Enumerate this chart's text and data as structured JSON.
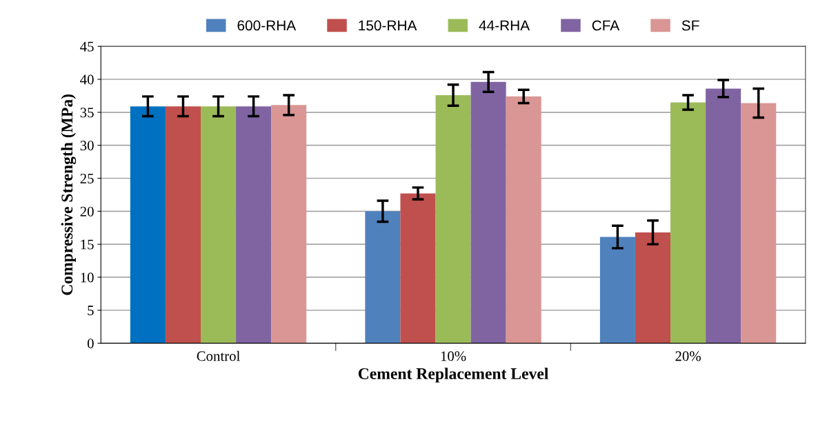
{
  "chart_data": {
    "type": "bar",
    "xlabel": "Cement Replacement Level",
    "ylabel": "Compressive Strength (MPa)",
    "categories": [
      "Control",
      "10%",
      "20%"
    ],
    "series": [
      {
        "name": "600-RHA",
        "color": "#4f81bd",
        "colors": [
          "#0070c0",
          "#4f81bd",
          "#4f81bd"
        ],
        "values": [
          35.9,
          20.0,
          16.1
        ],
        "errors": [
          1.5,
          1.6,
          1.7
        ]
      },
      {
        "name": "150-RHA",
        "color": "#c0504d",
        "values": [
          35.9,
          22.7,
          16.8
        ],
        "errors": [
          1.5,
          0.9,
          1.8
        ]
      },
      {
        "name": "44-RHA",
        "color": "#9bbb59",
        "values": [
          35.9,
          37.6,
          36.5
        ],
        "errors": [
          1.5,
          1.6,
          1.1
        ]
      },
      {
        "name": "CFA",
        "color": "#8064a2",
        "values": [
          35.9,
          39.6,
          38.6
        ],
        "errors": [
          1.5,
          1.5,
          1.3
        ]
      },
      {
        "name": "SF",
        "color": "#d99694",
        "values": [
          36.1,
          37.4,
          36.4
        ],
        "errors": [
          1.5,
          1.0,
          2.2
        ]
      }
    ],
    "ylim": [
      0,
      45
    ],
    "yticks": [
      0,
      5,
      10,
      15,
      20,
      25,
      30,
      35,
      40,
      45
    ],
    "grid": "y",
    "legend": "top"
  }
}
